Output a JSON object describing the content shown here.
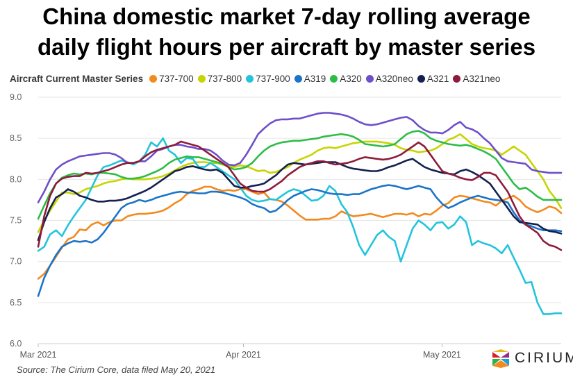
{
  "title_line1": "China domestic market 7-day rolling average",
  "title_line2": "daily flight hours per aircraft by master series",
  "legend_title": "Aircraft Current Master Series",
  "source": "Source: The Cirium Core, data filed May 20, 2021",
  "logo_text": "CIRIUM",
  "chart_data": {
    "type": "line",
    "title": "China domestic market 7-day rolling average daily flight hours per aircraft by master series",
    "ylim": [
      6.0,
      9.0
    ],
    "yticks": [
      6.0,
      6.5,
      7.0,
      7.5,
      8.0,
      8.5,
      9.0
    ],
    "x_start": "2021-03-01",
    "x_end": "2021-05-19",
    "xticks": [
      {
        "date": "2021-03-01",
        "label": "Mar 2021"
      },
      {
        "date": "2021-04-01",
        "label": "Apr 2021"
      },
      {
        "date": "2021-05-01",
        "label": "May 2021"
      }
    ],
    "grid": true,
    "legend_position": "top",
    "series": [
      {
        "name": "737-700",
        "color": "#f28a1e",
        "values": [
          6.79,
          6.85,
          6.95,
          7.06,
          7.17,
          7.27,
          7.3,
          7.39,
          7.38,
          7.45,
          7.48,
          7.44,
          7.48,
          7.5,
          7.5,
          7.55,
          7.57,
          7.58,
          7.58,
          7.59,
          7.6,
          7.62,
          7.66,
          7.71,
          7.75,
          7.82,
          7.86,
          7.88,
          7.91,
          7.91,
          7.88,
          7.86,
          7.87,
          7.86,
          7.88,
          7.88,
          7.85,
          7.82,
          7.84,
          7.76,
          7.75,
          7.73,
          7.68,
          7.62,
          7.56,
          7.51,
          7.51,
          7.51,
          7.52,
          7.52,
          7.55,
          7.61,
          7.58,
          7.55,
          7.56,
          7.57,
          7.58,
          7.56,
          7.54,
          7.56,
          7.58,
          7.58,
          7.57,
          7.59,
          7.55,
          7.58,
          7.57,
          7.62,
          7.68,
          7.71,
          7.78,
          7.8,
          7.79,
          7.77,
          7.75,
          7.73,
          7.72,
          7.68,
          7.74,
          7.77,
          7.8,
          7.75,
          7.67,
          7.63,
          7.6,
          7.63,
          7.67,
          7.65,
          7.59
        ]
      },
      {
        "name": "737-800",
        "color": "#c8d400",
        "values": [
          7.36,
          7.5,
          7.62,
          7.73,
          7.84,
          7.84,
          7.82,
          7.84,
          7.88,
          7.9,
          7.92,
          7.95,
          7.97,
          7.98,
          8.0,
          8.01,
          8.0,
          8.0,
          8.0,
          8.01,
          8.02,
          8.04,
          8.07,
          8.11,
          8.15,
          8.18,
          8.2,
          8.21,
          8.21,
          8.2,
          8.2,
          8.18,
          8.16,
          8.15,
          8.17,
          8.16,
          8.13,
          8.1,
          8.11,
          8.08,
          8.09,
          8.12,
          8.15,
          8.2,
          8.24,
          8.27,
          8.3,
          8.35,
          8.38,
          8.39,
          8.38,
          8.4,
          8.42,
          8.44,
          8.45,
          8.46,
          8.46,
          8.46,
          8.45,
          8.44,
          8.42,
          8.38,
          8.36,
          8.35,
          8.33,
          8.34,
          8.35,
          8.38,
          8.43,
          8.48,
          8.51,
          8.55,
          8.49,
          8.43,
          8.4,
          8.38,
          8.37,
          8.35,
          8.3,
          8.35,
          8.4,
          8.35,
          8.3,
          8.2,
          8.1,
          8.0,
          7.86,
          7.77,
          7.65
        ]
      },
      {
        "name": "737-900",
        "color": "#22c4dc",
        "values": [
          7.13,
          7.18,
          7.33,
          7.38,
          7.31,
          7.44,
          7.55,
          7.65,
          7.75,
          7.9,
          8.05,
          8.15,
          8.17,
          8.2,
          8.23,
          8.21,
          8.18,
          8.22,
          8.3,
          8.45,
          8.4,
          8.5,
          8.35,
          8.3,
          8.2,
          8.26,
          8.25,
          8.15,
          8.15,
          8.2,
          8.15,
          8.1,
          8.05,
          8.0,
          7.9,
          7.8,
          7.75,
          7.73,
          7.74,
          7.76,
          7.75,
          7.8,
          7.85,
          7.88,
          7.86,
          7.8,
          7.74,
          7.75,
          7.8,
          7.92,
          7.86,
          7.7,
          7.6,
          7.42,
          7.2,
          7.08,
          7.2,
          7.32,
          7.38,
          7.3,
          7.25,
          7.0,
          7.2,
          7.4,
          7.5,
          7.45,
          7.38,
          7.47,
          7.48,
          7.4,
          7.45,
          7.55,
          7.48,
          7.2,
          7.25,
          7.22,
          7.2,
          7.16,
          7.1,
          7.2,
          7.05,
          6.9,
          6.74,
          6.75,
          6.5,
          6.36,
          6.36,
          6.37,
          6.37
        ]
      },
      {
        "name": "A319",
        "color": "#1b74c8",
        "values": [
          6.58,
          6.8,
          6.95,
          7.08,
          7.18,
          7.22,
          7.25,
          7.24,
          7.25,
          7.23,
          7.27,
          7.35,
          7.45,
          7.55,
          7.65,
          7.7,
          7.72,
          7.75,
          7.73,
          7.75,
          7.78,
          7.8,
          7.82,
          7.84,
          7.85,
          7.84,
          7.84,
          7.83,
          7.83,
          7.85,
          7.85,
          7.84,
          7.82,
          7.8,
          7.78,
          7.75,
          7.7,
          7.67,
          7.65,
          7.6,
          7.62,
          7.68,
          7.75,
          7.8,
          7.83,
          7.86,
          7.88,
          7.87,
          7.85,
          7.83,
          7.82,
          7.82,
          7.81,
          7.82,
          7.82,
          7.85,
          7.88,
          7.9,
          7.92,
          7.93,
          7.92,
          7.9,
          7.88,
          7.9,
          7.92,
          7.9,
          7.88,
          7.78,
          7.7,
          7.65,
          7.68,
          7.72,
          7.75,
          7.78,
          7.8,
          7.78,
          7.76,
          7.75,
          7.74,
          7.72,
          7.6,
          7.5,
          7.45,
          7.43,
          7.4,
          7.38,
          7.38,
          7.38,
          7.37
        ]
      },
      {
        "name": "A320",
        "color": "#2dbd47",
        "values": [
          7.52,
          7.68,
          7.83,
          7.95,
          8.02,
          8.05,
          8.07,
          8.06,
          8.07,
          8.06,
          8.08,
          8.08,
          8.07,
          8.06,
          8.03,
          8.01,
          8.01,
          8.02,
          8.04,
          8.07,
          8.1,
          8.14,
          8.2,
          8.24,
          8.26,
          8.28,
          8.27,
          8.27,
          8.25,
          8.23,
          8.21,
          8.19,
          8.15,
          8.12,
          8.13,
          8.15,
          8.2,
          8.28,
          8.35,
          8.4,
          8.43,
          8.45,
          8.46,
          8.47,
          8.47,
          8.48,
          8.49,
          8.5,
          8.52,
          8.53,
          8.54,
          8.55,
          8.54,
          8.52,
          8.48,
          8.43,
          8.42,
          8.41,
          8.4,
          8.41,
          8.43,
          8.49,
          8.55,
          8.58,
          8.59,
          8.56,
          8.5,
          8.47,
          8.45,
          8.43,
          8.42,
          8.41,
          8.42,
          8.4,
          8.37,
          8.34,
          8.3,
          8.25,
          8.15,
          8.05,
          7.95,
          7.88,
          7.9,
          7.85,
          7.79,
          7.75,
          7.75,
          7.75,
          7.75
        ]
      },
      {
        "name": "A320neo",
        "color": "#6e4fc9",
        "values": [
          7.72,
          7.85,
          8.0,
          8.12,
          8.18,
          8.22,
          8.25,
          8.28,
          8.29,
          8.3,
          8.31,
          8.32,
          8.32,
          8.3,
          8.26,
          8.2,
          8.2,
          8.22,
          8.22,
          8.28,
          8.35,
          8.37,
          8.4,
          8.42,
          8.42,
          8.4,
          8.39,
          8.37,
          8.37,
          8.35,
          8.3,
          8.23,
          8.18,
          8.17,
          8.2,
          8.3,
          8.42,
          8.55,
          8.62,
          8.68,
          8.72,
          8.73,
          8.73,
          8.74,
          8.74,
          8.76,
          8.78,
          8.8,
          8.81,
          8.81,
          8.8,
          8.79,
          8.77,
          8.74,
          8.7,
          8.67,
          8.66,
          8.67,
          8.69,
          8.71,
          8.73,
          8.75,
          8.76,
          8.72,
          8.65,
          8.6,
          8.57,
          8.57,
          8.56,
          8.6,
          8.66,
          8.7,
          8.63,
          8.61,
          8.57,
          8.5,
          8.44,
          8.35,
          8.26,
          8.22,
          8.21,
          8.2,
          8.19,
          8.12,
          8.1,
          8.09,
          8.08,
          8.08,
          8.08
        ]
      },
      {
        "name": "A321",
        "color": "#14204f",
        "values": [
          7.26,
          7.48,
          7.65,
          7.78,
          7.82,
          7.88,
          7.85,
          7.8,
          7.78,
          7.75,
          7.73,
          7.73,
          7.74,
          7.74,
          7.75,
          7.77,
          7.8,
          7.83,
          7.86,
          7.9,
          7.95,
          8.0,
          8.05,
          8.1,
          8.12,
          8.15,
          8.16,
          8.14,
          8.12,
          8.11,
          8.12,
          8.08,
          8.0,
          7.92,
          7.9,
          7.9,
          7.92,
          7.93,
          7.95,
          8.0,
          8.05,
          8.12,
          8.18,
          8.2,
          8.19,
          8.18,
          8.19,
          8.2,
          8.21,
          8.21,
          8.21,
          8.18,
          8.15,
          8.13,
          8.12,
          8.11,
          8.1,
          8.1,
          8.12,
          8.15,
          8.17,
          8.2,
          8.23,
          8.25,
          8.2,
          8.15,
          8.12,
          8.1,
          8.08,
          8.07,
          8.06,
          8.1,
          8.12,
          8.09,
          8.05,
          8.0,
          7.95,
          7.85,
          7.75,
          7.65,
          7.55,
          7.48,
          7.47,
          7.46,
          7.45,
          7.4,
          7.37,
          7.36,
          7.34
        ]
      },
      {
        "name": "A321neo",
        "color": "#8e1b3c",
        "values": [
          7.18,
          7.55,
          7.8,
          7.95,
          8.01,
          8.03,
          8.04,
          8.04,
          8.08,
          8.07,
          8.08,
          8.1,
          8.12,
          8.15,
          8.18,
          8.2,
          8.2,
          8.22,
          8.28,
          8.33,
          8.36,
          8.38,
          8.4,
          8.42,
          8.46,
          8.44,
          8.42,
          8.4,
          8.35,
          8.3,
          8.25,
          8.2,
          8.15,
          8.05,
          7.95,
          7.9,
          7.86,
          7.85,
          7.85,
          7.88,
          7.93,
          7.98,
          8.05,
          8.1,
          8.15,
          8.18,
          8.2,
          8.22,
          8.22,
          8.2,
          8.18,
          8.19,
          8.2,
          8.22,
          8.25,
          8.27,
          8.26,
          8.25,
          8.24,
          8.25,
          8.27,
          8.3,
          8.35,
          8.4,
          8.45,
          8.4,
          8.3,
          8.2,
          8.1,
          8.07,
          8.05,
          8.02,
          8.0,
          7.99,
          8.03,
          8.08,
          8.08,
          8.05,
          7.95,
          7.85,
          7.7,
          7.55,
          7.45,
          7.4,
          7.35,
          7.25,
          7.2,
          7.18,
          7.14
        ]
      }
    ]
  }
}
